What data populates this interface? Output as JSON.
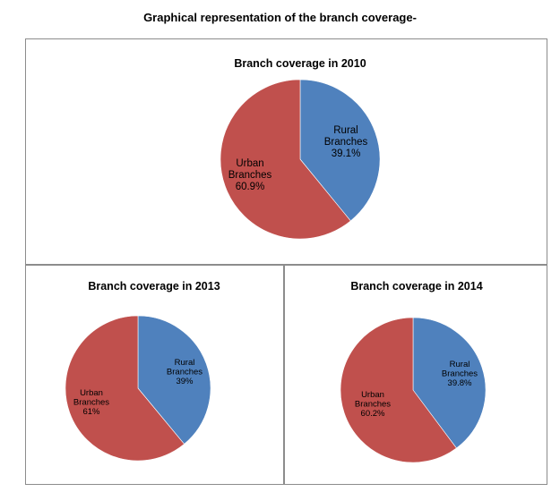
{
  "page_title": "Graphical representation of the branch coverage-",
  "colors": {
    "rural": "#4f81bd",
    "urban": "#c0504d"
  },
  "chart_data": [
    {
      "type": "pie",
      "title": "Branch coverage in 2010",
      "slices": [
        {
          "label_lines": [
            "Rural",
            "Branches"
          ],
          "value": 39.1,
          "value_label": "39.1%",
          "color": "#4f81bd"
        },
        {
          "label_lines": [
            "Urban",
            "Branches"
          ],
          "value": 60.9,
          "value_label": "60.9%",
          "color": "#c0504d"
        }
      ]
    },
    {
      "type": "pie",
      "title": "Branch coverage in 2013",
      "slices": [
        {
          "label_lines": [
            "Rural",
            "Branches"
          ],
          "value": 39,
          "value_label": "39%",
          "color": "#4f81bd"
        },
        {
          "label_lines": [
            "Urban",
            "Branches"
          ],
          "value": 61,
          "value_label": "61%",
          "color": "#c0504d"
        }
      ]
    },
    {
      "type": "pie",
      "title": "Branch coverage in 2014",
      "slices": [
        {
          "label_lines": [
            "Rural",
            "Branches"
          ],
          "value": 39.8,
          "value_label": "39.8%",
          "color": "#4f81bd"
        },
        {
          "label_lines": [
            "Urban",
            "Branches"
          ],
          "value": 60.2,
          "value_label": "60.2%",
          "color": "#c0504d"
        }
      ]
    }
  ]
}
